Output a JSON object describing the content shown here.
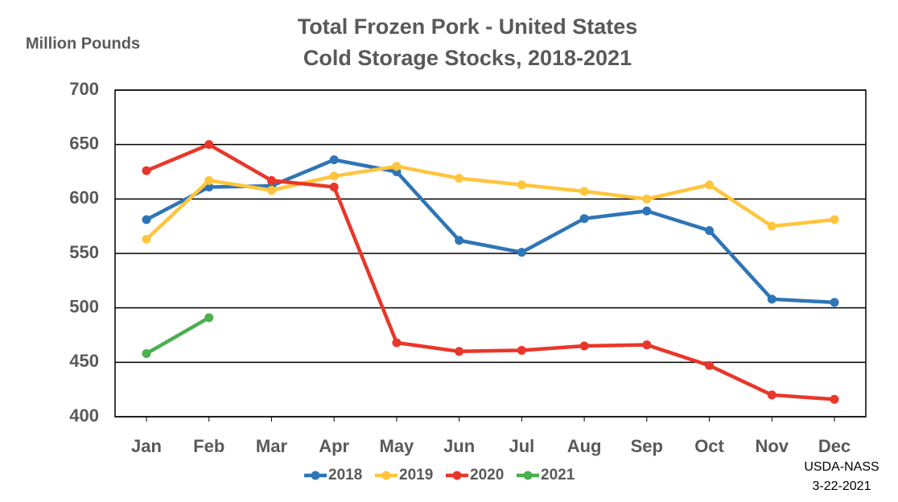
{
  "chart_data": {
    "type": "line",
    "title": "Total Frozen Pork - United States",
    "subtitle": "Cold Storage Stocks, 2018-2021",
    "y_label": "Million Pounds",
    "annotations": [
      "USDA-NASS",
      "3-22-2021"
    ],
    "categories": [
      "Jan",
      "Feb",
      "Mar",
      "Apr",
      "May",
      "Jun",
      "Jul",
      "Aug",
      "Sep",
      "Oct",
      "Nov",
      "Dec"
    ],
    "ylim": [
      400,
      700
    ],
    "yticks": [
      400,
      450,
      500,
      550,
      600,
      650,
      700
    ],
    "grid": true,
    "legend": "bottom",
    "series": [
      {
        "name": "2018",
        "color": "#2e75b6",
        "values": [
          581,
          611,
          612,
          636,
          625,
          562,
          551,
          582,
          589,
          571,
          508,
          505
        ]
      },
      {
        "name": "2019",
        "color": "#ffc53d",
        "values": [
          563,
          617,
          608,
          621,
          630,
          619,
          613,
          607,
          600,
          613,
          575,
          581
        ]
      },
      {
        "name": "2020",
        "color": "#e8372a",
        "values": [
          626,
          650,
          617,
          611,
          468,
          460,
          461,
          465,
          466,
          447,
          420,
          416
        ]
      },
      {
        "name": "2021",
        "color": "#4caf50",
        "values": [
          458,
          491,
          null,
          null,
          null,
          null,
          null,
          null,
          null,
          null,
          null,
          null
        ]
      }
    ]
  }
}
